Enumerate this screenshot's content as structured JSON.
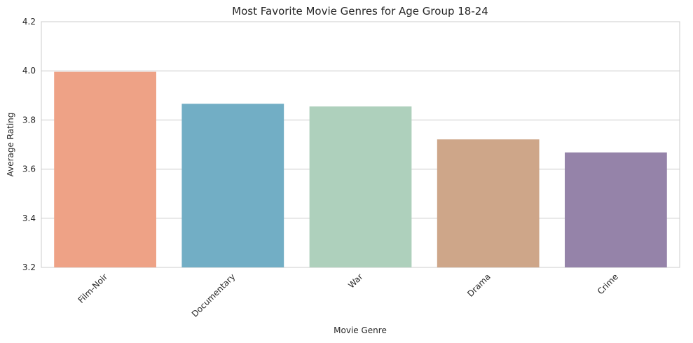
{
  "chart_data": {
    "type": "bar",
    "title": "Most Favorite Movie Genres for Age Group 18-24",
    "xlabel": "Movie Genre",
    "ylabel": "Average Rating",
    "categories": [
      "Film-Noir",
      "Documentary",
      "War",
      "Drama",
      "Crime"
    ],
    "values": [
      3.996,
      3.866,
      3.855,
      3.721,
      3.668
    ],
    "ylim": [
      3.2,
      4.2
    ],
    "yticks": [
      "3.2",
      "3.4",
      "3.6",
      "3.8",
      "4.0",
      "4.2"
    ],
    "grid": true,
    "colors": [
      "#eea286",
      "#72aec5",
      "#aed0bc",
      "#cea689",
      "#9583a9"
    ]
  }
}
